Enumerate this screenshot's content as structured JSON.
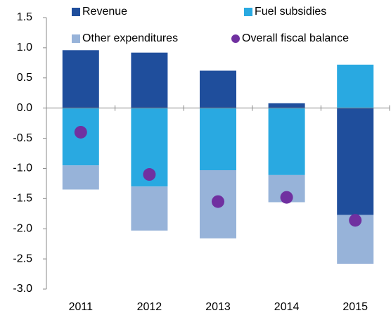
{
  "chart_data": {
    "type": "bar",
    "stacked": true,
    "categories": [
      "2011",
      "2012",
      "2013",
      "2014",
      "2015"
    ],
    "series": [
      {
        "name": "Revenue",
        "color": "#1f4e9c",
        "values": [
          0.96,
          0.92,
          0.62,
          0.08,
          -1.77
        ]
      },
      {
        "name": "Fuel subsidies",
        "color": "#29a9e1",
        "values": [
          -0.95,
          -1.3,
          -1.03,
          -1.11,
          0.72
        ]
      },
      {
        "name": "Other expenditures",
        "color": "#97b3d9",
        "values": [
          -0.4,
          -0.73,
          -1.13,
          -0.45,
          -0.81
        ]
      },
      {
        "name": "Overall fiscal balance",
        "color": "#7030a0",
        "type": "scatter",
        "values": [
          -0.4,
          -1.1,
          -1.55,
          -1.48,
          -1.86
        ]
      }
    ],
    "ylim": [
      -3.0,
      1.5
    ],
    "yticks": [
      {
        "value": -3,
        "label": "-3.0"
      },
      {
        "value": -2.5,
        "label": "-2.5"
      },
      {
        "value": -2,
        "label": "-2.0"
      },
      {
        "value": -1.5,
        "label": "-1.5"
      },
      {
        "value": -1,
        "label": "-1.0"
      },
      {
        "value": -0.5,
        "label": "-0.5"
      },
      {
        "value": 0,
        "label": "0.0"
      },
      {
        "value": 0.5,
        "label": "0.5"
      },
      {
        "value": 1,
        "label": "1.0"
      },
      {
        "value": 1.5,
        "label": "1.5"
      }
    ],
    "legend": "top"
  }
}
